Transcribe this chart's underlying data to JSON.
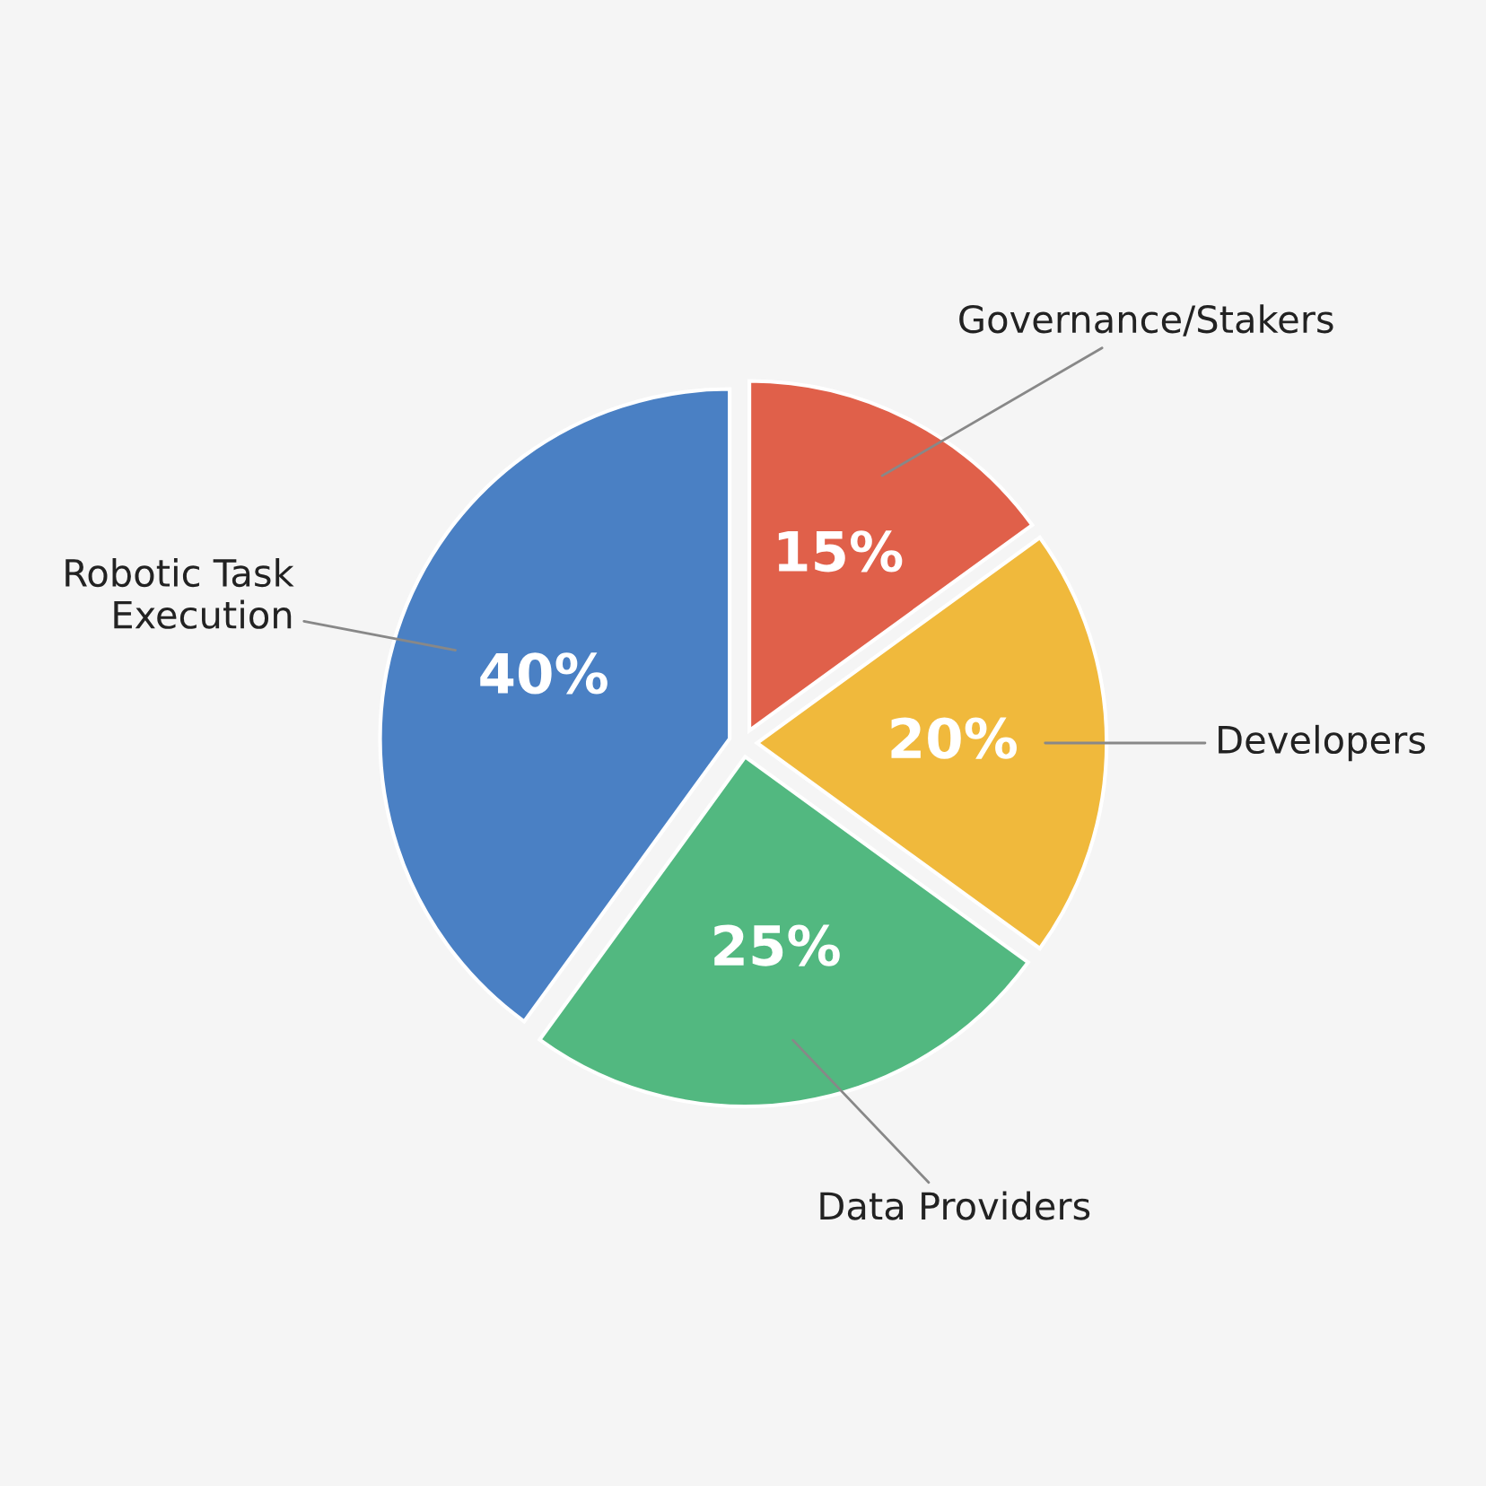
{
  "chart_data": {
    "type": "pie",
    "categories": [
      "Governance/Stakers",
      "Developers",
      "Data Providers",
      "Robotic Task Execution"
    ],
    "values": [
      15,
      20,
      25,
      40
    ],
    "colors": [
      "#e0604a",
      "#f0b93c",
      "#52b880",
      "#4a80c4"
    ],
    "value_labels": [
      "15%",
      "20%",
      "25%",
      "40%"
    ]
  }
}
